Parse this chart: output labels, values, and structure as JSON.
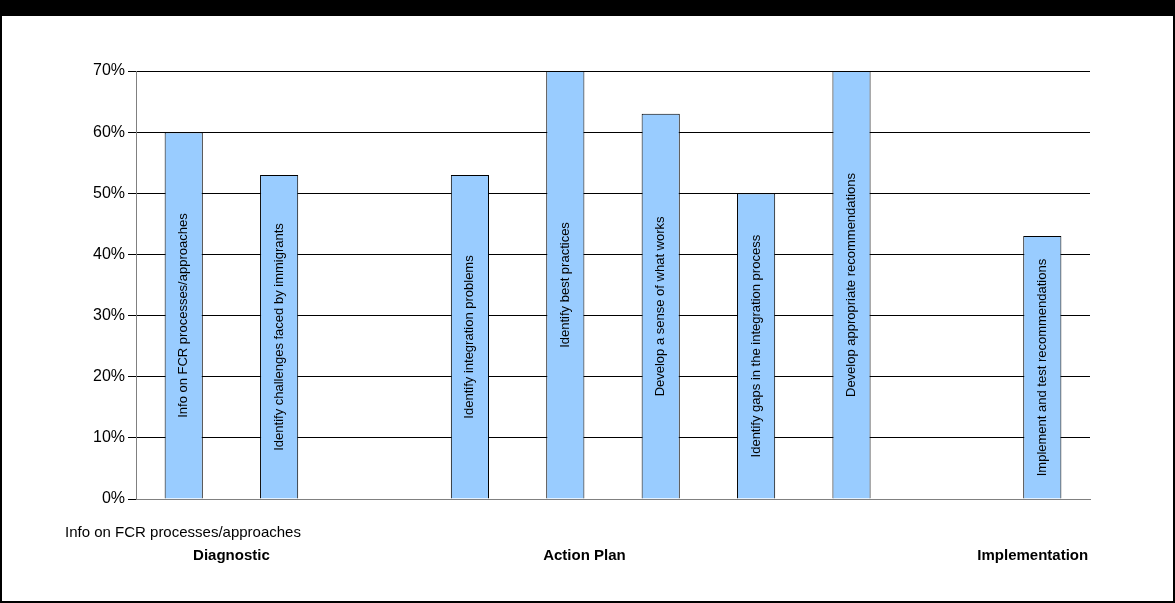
{
  "chart_data": {
    "type": "bar",
    "categories": [
      "Info on FCR processes/approaches",
      "Identify challenges faced by immigrants",
      null,
      "Identify integration problems",
      "Identify best practices",
      "Develop a sense of what works",
      "Identify gaps in the integration process",
      "Develop appropriate recommendations",
      null,
      "Implement and test recommendations"
    ],
    "values": [
      60,
      53,
      null,
      53,
      70,
      63,
      50,
      70,
      null,
      43
    ],
    "color": "#99ccff",
    "ylim": [
      0,
      70
    ],
    "yticks": [
      {
        "value": 0,
        "label": "0%"
      },
      {
        "value": 10,
        "label": "10%"
      },
      {
        "value": 20,
        "label": "20%"
      },
      {
        "value": 30,
        "label": "30%"
      },
      {
        "value": 40,
        "label": "40%"
      },
      {
        "value": 50,
        "label": "50%"
      },
      {
        "value": 60,
        "label": "60%"
      },
      {
        "value": 70,
        "label": "70%"
      }
    ],
    "grid": "y",
    "annotations": [
      "Info on FCR processes/approaches",
      "Diagnostic",
      "Action Plan",
      "Implementation"
    ]
  }
}
